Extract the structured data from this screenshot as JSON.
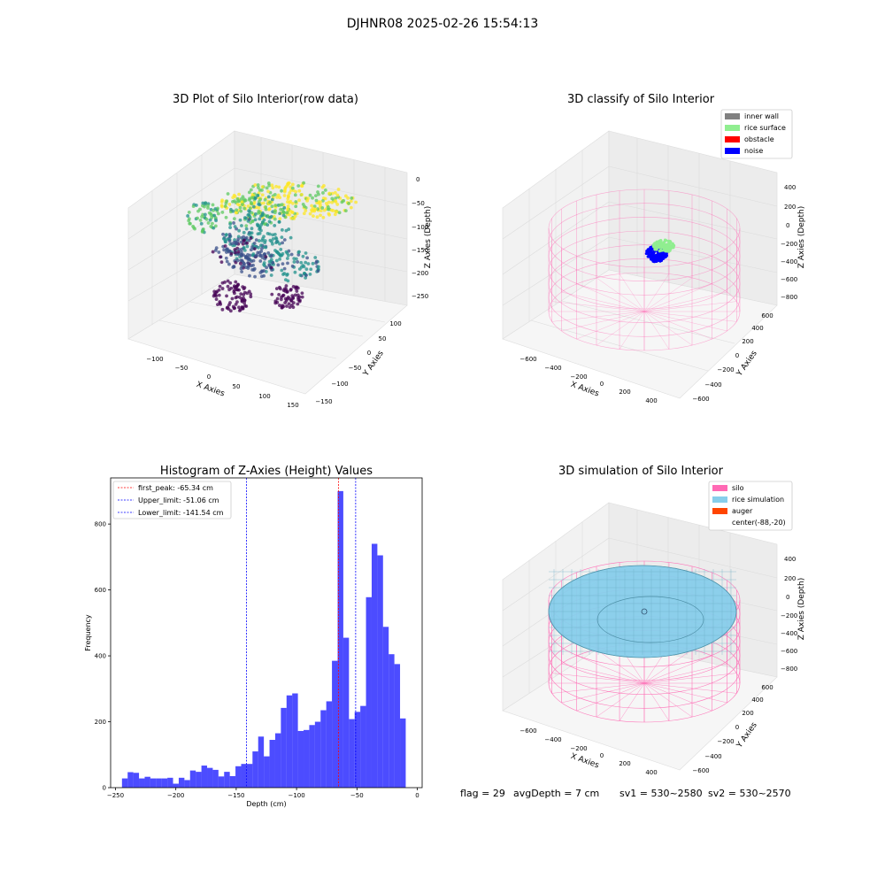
{
  "suptitle": "DJHNR08 2025-02-26 15:54:13",
  "footer": {
    "flag": "flag = 29",
    "avg_depth": "avgDepth = 7 cm",
    "sv1": "sv1 = 530~2580",
    "sv2": "sv2 = 530~2570"
  },
  "chart_data": [
    {
      "type": "scatter",
      "title": "3D Plot of Silo Interior(row data)",
      "xlabel": "X Axies",
      "ylabel": "Y Axies",
      "zlabel": "Z Axies (Depth)",
      "x_ticks": [
        "−100",
        "−50",
        "0",
        "50",
        "100",
        "150"
      ],
      "y_ticks": [
        "−150",
        "−100",
        "−50",
        "0",
        "50",
        "100"
      ],
      "z_ticks": [
        "0",
        "−50",
        "−100",
        "−150",
        "−200",
        "−250"
      ],
      "colormap": "viridis",
      "colormap_colors": [
        "#440154",
        "#3b528b",
        "#21918c",
        "#5ec962",
        "#fde725"
      ]
    },
    {
      "type": "scatter",
      "title": "3D classify of Silo Interior",
      "xlabel": "X Axies",
      "ylabel": "Y Axies",
      "zlabel": "Z Axies (Depth)",
      "x_ticks": [
        "−600",
        "−400",
        "−200",
        "0",
        "200",
        "400"
      ],
      "y_ticks": [
        "−600",
        "−400",
        "−200",
        "0",
        "200",
        "400",
        "600"
      ],
      "z_ticks": [
        "400",
        "200",
        "0",
        "−200",
        "−400",
        "−600",
        "−800"
      ],
      "legend": [
        {
          "label": "inner wall",
          "color": "#808080"
        },
        {
          "label": "rice surface",
          "color": "#90ee90"
        },
        {
          "label": "obstacle",
          "color": "#ff0000"
        },
        {
          "label": "noise",
          "color": "#0000ff"
        }
      ],
      "wall_color": "#ff69b4",
      "legend_position": "top-right"
    },
    {
      "type": "bar",
      "title": "Histogram of Z-Axies (Height) Values",
      "xlabel": "Depth (cm)",
      "ylabel": "Frequency",
      "xlim": [
        -254,
        4
      ],
      "ylim": [
        0,
        940
      ],
      "x_ticks": [
        -250,
        -200,
        -150,
        -100,
        -50,
        0
      ],
      "y_ticks": [
        0,
        200,
        400,
        600,
        800
      ],
      "bar_color": "#0000ff",
      "bar_opacity": 0.7,
      "bin_start": -244.6,
      "bin_width": 4.7,
      "values": [
        28,
        47,
        45,
        28,
        33,
        28,
        28,
        28,
        30,
        12,
        30,
        23,
        52,
        48,
        67,
        60,
        54,
        34,
        48,
        35,
        65,
        72,
        72,
        110,
        155,
        95,
        145,
        165,
        242,
        280,
        286,
        172,
        175,
        190,
        200,
        235,
        262,
        385,
        900,
        455,
        208,
        230,
        248,
        578,
        740,
        705,
        488,
        405,
        375,
        210
      ],
      "reference_lines": [
        {
          "label": "first_peak: -65.34 cm",
          "value": -65.34,
          "color": "#ff0000"
        },
        {
          "label": "Upper_limit: -51.06 cm",
          "value": -51.06,
          "color": "#0000ff"
        },
        {
          "label": "Lower_limit: -141.54 cm",
          "value": -141.54,
          "color": "#0000ff"
        }
      ],
      "legend_position": "top-left"
    },
    {
      "type": "scatter",
      "title": "3D simulation of Silo Interior",
      "xlabel": "X Axies",
      "ylabel": "Y Axies",
      "zlabel": "Z Axies (Depth)",
      "x_ticks": [
        "−600",
        "−400",
        "−200",
        "0",
        "200",
        "400"
      ],
      "y_ticks": [
        "−600",
        "−400",
        "−200",
        "0",
        "200",
        "400",
        "600"
      ],
      "z_ticks": [
        "400",
        "200",
        "0",
        "−200",
        "−400",
        "−600",
        "−800"
      ],
      "legend": [
        {
          "label": "silo",
          "color": "#ff69b4"
        },
        {
          "label": "rice simulation",
          "color": "#87ceeb"
        },
        {
          "label": "auger",
          "color": "#ff4500"
        },
        {
          "label": "center(-88,-20)",
          "color": ""
        }
      ],
      "legend_position": "top-right"
    }
  ]
}
